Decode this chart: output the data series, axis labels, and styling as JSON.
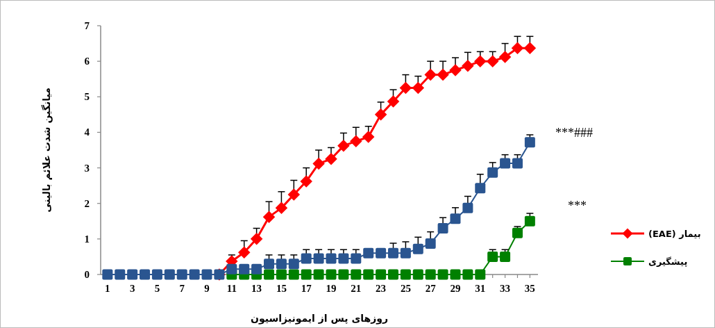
{
  "chart_data": {
    "type": "line",
    "xlabel": "روزهای پس از ایمونیزاسیون",
    "ylabel": "میانگین شدت علائم بالینی",
    "x": [
      1,
      2,
      3,
      4,
      5,
      6,
      7,
      8,
      9,
      10,
      11,
      12,
      13,
      14,
      15,
      16,
      17,
      18,
      19,
      20,
      21,
      22,
      23,
      24,
      25,
      26,
      27,
      28,
      29,
      30,
      31,
      32,
      33,
      34,
      35
    ],
    "xlim": [
      0.45,
      35.65
    ],
    "xticks": [
      1,
      {
        "value": 2,
        "label": null
      },
      3,
      {
        "value": 4,
        "label": null
      },
      5,
      {
        "value": 6,
        "label": null
      },
      7,
      {
        "value": 8,
        "label": null
      },
      9,
      {
        "value": 10,
        "label": null
      },
      11,
      {
        "value": 12,
        "label": null
      },
      13,
      {
        "value": 14,
        "label": null
      },
      15,
      {
        "value": 16,
        "label": null
      },
      17,
      {
        "value": 18,
        "label": null
      },
      19,
      {
        "value": 20,
        "label": null
      },
      21,
      {
        "value": 22,
        "label": null
      },
      23,
      {
        "value": 24,
        "label": null
      },
      25,
      {
        "value": 26,
        "label": null
      },
      27,
      {
        "value": 28,
        "label": null
      },
      29,
      {
        "value": 30,
        "label": null
      },
      31,
      {
        "value": 32,
        "label": null
      },
      33,
      {
        "value": 34,
        "label": null
      },
      35
    ],
    "ylim": [
      0,
      7
    ],
    "yticks": [
      0,
      1,
      2,
      3,
      4,
      5,
      6,
      7
    ],
    "series": [
      {
        "name": "بیمار (EAE)",
        "color": "#ff0000",
        "marker": "diamond",
        "values": [
          null,
          null,
          null,
          null,
          null,
          null,
          null,
          null,
          null,
          0,
          0.37,
          0.62,
          1.0,
          1.62,
          1.87,
          2.25,
          2.62,
          3.12,
          3.25,
          3.62,
          3.75,
          3.87,
          4.5,
          4.87,
          5.25,
          5.25,
          5.62,
          5.62,
          5.75,
          5.87,
          6.0,
          6.0,
          6.12,
          6.37,
          6.37
        ],
        "errors": [
          null,
          null,
          null,
          null,
          null,
          null,
          null,
          null,
          null,
          null,
          [
            0.37,
            0.55
          ],
          [
            0.62,
            0.95
          ],
          [
            1.0,
            1.3
          ],
          [
            1.62,
            2.05
          ],
          [
            1.87,
            2.33
          ],
          [
            2.25,
            2.65
          ],
          [
            2.62,
            3.0
          ],
          [
            3.12,
            3.5
          ],
          [
            3.25,
            3.57
          ],
          [
            3.62,
            3.98
          ],
          [
            3.75,
            4.14
          ],
          [
            3.87,
            4.17
          ],
          [
            4.5,
            4.85
          ],
          [
            4.87,
            5.2
          ],
          [
            5.25,
            5.62
          ],
          [
            5.25,
            5.58
          ],
          [
            5.62,
            6.0
          ],
          [
            5.62,
            6.0
          ],
          [
            5.75,
            6.1
          ],
          [
            5.87,
            6.25
          ],
          [
            6.0,
            6.27
          ],
          [
            6.0,
            6.27
          ],
          [
            6.12,
            6.5
          ],
          [
            6.37,
            6.7
          ],
          [
            6.37,
            6.7
          ]
        ]
      },
      {
        "color": "#2a5590",
        "marker": "square",
        "values": [
          0,
          0,
          0,
          0,
          0,
          0,
          0,
          0,
          0,
          0,
          0.15,
          0.15,
          0.15,
          0.3,
          0.3,
          0.3,
          0.45,
          0.45,
          0.45,
          0.45,
          0.45,
          0.6,
          0.6,
          0.6,
          0.6,
          0.72,
          0.87,
          1.3,
          1.57,
          1.87,
          2.43,
          2.87,
          3.13,
          3.13,
          3.72
        ],
        "errors": [
          null,
          null,
          null,
          null,
          null,
          null,
          null,
          null,
          null,
          null,
          null,
          null,
          null,
          [
            0.3,
            0.55
          ],
          [
            0.3,
            0.55
          ],
          [
            0.3,
            0.55
          ],
          [
            0.45,
            0.7
          ],
          [
            0.45,
            0.7
          ],
          [
            0.45,
            0.7
          ],
          [
            0.45,
            0.7
          ],
          [
            0.45,
            0.7
          ],
          null,
          null,
          [
            0.6,
            0.88
          ],
          [
            0.6,
            0.92
          ],
          [
            0.72,
            1.05
          ],
          [
            0.87,
            1.2
          ],
          [
            1.3,
            1.6
          ],
          [
            1.57,
            1.88
          ],
          [
            1.87,
            2.2
          ],
          [
            2.43,
            2.82
          ],
          [
            2.87,
            3.15
          ],
          [
            3.13,
            3.37
          ],
          [
            3.13,
            3.37
          ],
          [
            3.72,
            3.93
          ]
        ]
      },
      {
        "name": "پیشگیری",
        "color": "#008000",
        "marker": "square",
        "values": [
          null,
          null,
          null,
          null,
          null,
          null,
          null,
          null,
          null,
          null,
          0,
          0,
          0,
          0,
          0,
          0,
          0,
          0,
          0,
          0,
          0,
          0,
          0,
          0,
          0,
          0,
          0,
          0,
          0,
          0,
          0,
          0.5,
          0.5,
          1.17,
          1.5
        ],
        "errors": [
          null,
          null,
          null,
          null,
          null,
          null,
          null,
          null,
          null,
          null,
          null,
          null,
          null,
          null,
          null,
          null,
          null,
          null,
          null,
          null,
          null,
          null,
          null,
          null,
          null,
          null,
          null,
          null,
          null,
          null,
          null,
          [
            0.5,
            0.7
          ],
          [
            0.5,
            0.7
          ],
          [
            1.17,
            1.35
          ],
          [
            1.5,
            1.72
          ]
        ]
      }
    ],
    "annotations": [
      "***###",
      "***"
    ],
    "legend": "bottom right"
  }
}
